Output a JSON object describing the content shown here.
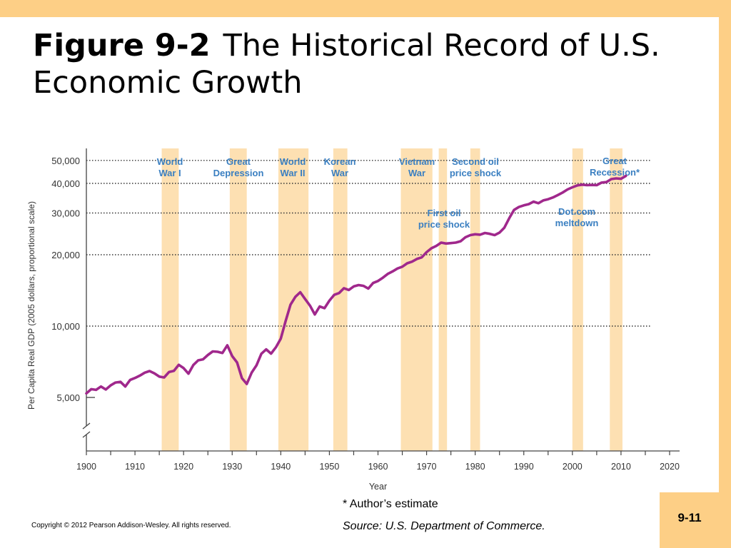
{
  "slide": {
    "title_bold": "Figure 9-2",
    "title_rest": "The Historical Record of U.S. Economic Growth",
    "footnote": "* Author’s estimate",
    "source": "Source: U.S. Department of Commerce.",
    "copyright": "Copyright © 2012 Pearson Addison-Wesley. All rights reserved.",
    "page_number": "9-11"
  },
  "chart_data": {
    "type": "line",
    "xlabel": "Year",
    "ylabel": "Per Capita Real GDP (2005 dollars, proportional scale)",
    "yscale": "log",
    "xlim": [
      1900,
      2020
    ],
    "x_ticks": [
      1900,
      1910,
      1920,
      1930,
      1940,
      1950,
      1960,
      1970,
      1980,
      1990,
      2000,
      2010,
      2020
    ],
    "y_ticks": [
      5000,
      10000,
      20000,
      30000,
      40000,
      50000
    ],
    "y_tick_labels": [
      "5,000",
      "10,000",
      "20,000",
      "30,000",
      "40,000",
      "50,000"
    ],
    "line_color": "#a0288c",
    "band_color": "#fde0b2",
    "grid": "dotted horizontal lines at 10,000, 20,000, 30,000, 40,000, 50,000",
    "bands": [
      {
        "start": 1915.5,
        "end": 1919,
        "label": [
          "World",
          "War I"
        ]
      },
      {
        "start": 1929.5,
        "end": 1933,
        "label": [
          "Great",
          "Depression"
        ]
      },
      {
        "start": 1939.5,
        "end": 1945.7,
        "label": [
          "World",
          "War II"
        ]
      },
      {
        "start": 1950.8,
        "end": 1953.7,
        "label": [
          "Korean",
          "War"
        ]
      },
      {
        "start": 1964.7,
        "end": 1971.2,
        "label": [
          "Vietnam",
          "War"
        ]
      },
      {
        "start": 1972.5,
        "end": 1974.2,
        "label": [
          "First oil",
          "price shock"
        ]
      },
      {
        "start": 1979,
        "end": 1981,
        "label": [
          "Second oil",
          "price shock"
        ]
      },
      {
        "start": 2000,
        "end": 2002.2,
        "label": [
          "Dot.com",
          "meltdown"
        ]
      },
      {
        "start": 2007.7,
        "end": 2010.3,
        "label": [
          "Great",
          "Recession*"
        ]
      }
    ],
    "series": [
      {
        "x": [
          1900,
          1901,
          1902,
          1903,
          1904,
          1905,
          1906,
          1907,
          1908,
          1909,
          1910,
          1911,
          1912,
          1913,
          1914,
          1915,
          1916,
          1917,
          1918,
          1919,
          1920,
          1921,
          1922,
          1923,
          1924,
          1925,
          1926,
          1927,
          1928,
          1929,
          1930,
          1931,
          1932,
          1933,
          1934,
          1935,
          1936,
          1937,
          1938,
          1939,
          1940,
          1941,
          1942,
          1943,
          1944,
          1945,
          1946,
          1947,
          1948,
          1949,
          1950,
          1951,
          1952,
          1953,
          1954,
          1955,
          1956,
          1957,
          1958,
          1959,
          1960,
          1961,
          1962,
          1963,
          1964,
          1965,
          1966,
          1967,
          1968,
          1969,
          1970,
          1971,
          1972,
          1973,
          1974,
          1975,
          1976,
          1977,
          1978,
          1979,
          1980,
          1981,
          1982,
          1983,
          1984,
          1985,
          1986,
          1987,
          1988,
          1989,
          1990,
          1991,
          1992,
          1993,
          1994,
          1995,
          1996,
          1997,
          1998,
          1999,
          2000,
          2001,
          2002,
          2003,
          2004,
          2005,
          2006,
          2007,
          2008,
          2009,
          2010,
          2011
        ],
        "values": [
          5200,
          5420,
          5380,
          5560,
          5400,
          5620,
          5780,
          5820,
          5560,
          5930,
          6040,
          6180,
          6360,
          6460,
          6320,
          6120,
          6070,
          6400,
          6470,
          6870,
          6650,
          6300,
          6850,
          7170,
          7240,
          7550,
          7820,
          7790,
          7700,
          8300,
          7470,
          7020,
          6030,
          5700,
          6360,
          6830,
          7640,
          7980,
          7650,
          8140,
          8850,
          10500,
          12300,
          13300,
          13900,
          13000,
          12200,
          11200,
          12100,
          11900,
          12800,
          13550,
          13780,
          14450,
          14200,
          14700,
          14900,
          14780,
          14400,
          15200,
          15500,
          16000,
          16600,
          17000,
          17500,
          17800,
          18400,
          18700,
          19200,
          19500,
          20500,
          21300,
          21800,
          22500,
          22300,
          22400,
          22500,
          22800,
          23700,
          24200,
          24400,
          24300,
          24700,
          24500,
          24200,
          24800,
          26000,
          28500,
          30900,
          31800,
          32300,
          32700,
          33500,
          33000,
          33900,
          34300,
          34900,
          35700,
          36600,
          37700,
          38500,
          39200,
          39500,
          39300,
          39400,
          39300,
          40300,
          40500,
          41700,
          42000,
          41800,
          43000
        ],
        "name": ""
      }
    ]
  }
}
